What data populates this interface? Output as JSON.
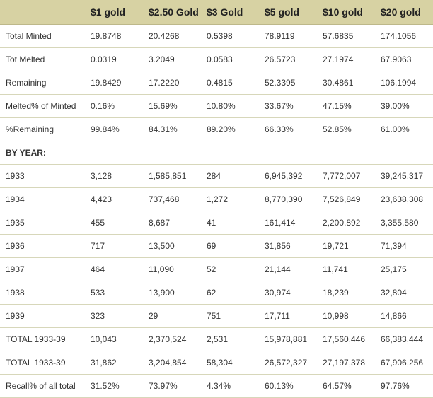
{
  "columns": [
    "",
    "$1 gold",
    "$2.50 Gold",
    "$3 Gold",
    "$5 gold",
    "$10 gold",
    "$20 gold"
  ],
  "rows": [
    {
      "label": "Total Minted",
      "cells": [
        "19.8748",
        "20.4268",
        "0.5398",
        "78.9119",
        "57.6835",
        "174.1056"
      ]
    },
    {
      "label": "Tot Melted",
      "cells": [
        "0.0319",
        "3.2049",
        "0.0583",
        "26.5723",
        "27.1974",
        "67.9063"
      ]
    },
    {
      "label": "Remaining",
      "cells": [
        "19.8429",
        "17.2220",
        "0.4815",
        "52.3395",
        "30.4861",
        "106.1994"
      ]
    },
    {
      "label": "Melted% of Minted",
      "cells": [
        "0.16%",
        "15.69%",
        "10.80%",
        "33.67%",
        "47.15%",
        "39.00%"
      ]
    },
    {
      "label": "%Remaining",
      "cells": [
        "99.84%",
        "84.31%",
        "89.20%",
        "66.33%",
        "52.85%",
        "61.00%"
      ]
    },
    {
      "label": "BY YEAR:",
      "cells": [
        "",
        "",
        "",
        "",
        "",
        ""
      ],
      "section": true
    },
    {
      "label": "1933",
      "cells": [
        "3,128",
        "1,585,851",
        "284",
        "6,945,392",
        "7,772,007",
        "39,245,317"
      ]
    },
    {
      "label": "1934",
      "cells": [
        "4,423",
        "737,468",
        "1,272",
        "8,770,390",
        "7,526,849",
        "23,638,308"
      ]
    },
    {
      "label": "1935",
      "cells": [
        "455",
        "8,687",
        "41",
        "161,414",
        "2,200,892",
        "3,355,580"
      ]
    },
    {
      "label": "1936",
      "cells": [
        "717",
        "13,500",
        "69",
        "31,856",
        "19,721",
        "71,394"
      ]
    },
    {
      "label": "1937",
      "cells": [
        "464",
        "11,090",
        "52",
        "21,144",
        "11,741",
        "25,175"
      ]
    },
    {
      "label": "1938",
      "cells": [
        "533",
        "13,900",
        "62",
        "30,974",
        "18,239",
        "32,804"
      ]
    },
    {
      "label": "1939",
      "cells": [
        "323",
        "29",
        "751",
        "17,711",
        "10,998",
        "14,866"
      ]
    },
    {
      "label": "TOTAL 1933-39",
      "cells": [
        "10,043",
        "2,370,524",
        "2,531",
        "15,978,881",
        "17,560,446",
        "66,383,444"
      ]
    },
    {
      "label": "TOTAL 1933-39",
      "cells": [
        "31,862",
        "3,204,854",
        "58,304",
        "26,572,327",
        "27,197,378",
        "67,906,256"
      ]
    },
    {
      "label": "Recall% of all total",
      "cells": [
        "31.52%",
        "73.97%",
        "4.34%",
        "60.13%",
        "64.57%",
        "97.76%"
      ]
    }
  ]
}
